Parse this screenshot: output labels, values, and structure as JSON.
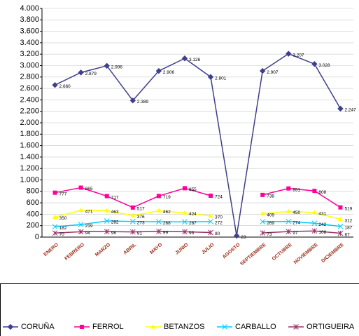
{
  "chart_data": {
    "type": "line",
    "categories": [
      "ENERO",
      "FEBRERO",
      "MARZO",
      "ABRIL",
      "MAYO",
      "JUNIO",
      "JULIO",
      "AGOSTO",
      "SEPTIEMBRE",
      "OCTUBRE",
      "NOVIEMBRE",
      "DICIEMBRE"
    ],
    "series": [
      {
        "name": "CORUÑA",
        "color": "#3f3f8f",
        "marker": "diamond",
        "values": [
          2660,
          2879,
          2996,
          2389,
          2906,
          3126,
          2801,
          23,
          2907,
          3207,
          3028,
          2247
        ],
        "value_labels": [
          "2.660",
          "2.879",
          "2.996",
          "2.389",
          "2.906",
          "3.126",
          "2.801",
          "23",
          "2.907",
          "3.207",
          "3.028",
          "2.247"
        ]
      },
      {
        "name": "FERROL",
        "color": "#ff0099",
        "marker": "square",
        "values": [
          777,
          865,
          717,
          517,
          719,
          855,
          724,
          null,
          738,
          851,
          808,
          519
        ]
      },
      {
        "name": "BETANZOS",
        "color": "#ffff00",
        "marker": "triangle",
        "values": [
          350,
          471,
          463,
          376,
          462,
          424,
          370,
          null,
          409,
          450,
          431,
          312
        ]
      },
      {
        "name": "CARBALLO",
        "color": "#00ccff",
        "marker": "x",
        "values": [
          182,
          219,
          282,
          273,
          268,
          267,
          272,
          null,
          269,
          274,
          242,
          187
        ]
      },
      {
        "name": "ORTIGUEIRA",
        "color": "#993366",
        "marker": "star",
        "values": [
          70,
          94,
          96,
          91,
          99,
          93,
          80,
          null,
          73,
          97,
          108,
          67
        ]
      }
    ],
    "ylim": [
      0,
      4000
    ],
    "yticks": [
      0,
      200,
      400,
      600,
      800,
      {
        "value": 1000,
        "label": "1.000"
      },
      {
        "value": 1200,
        "label": "1.200"
      },
      {
        "value": 1400,
        "label": "1.400"
      },
      {
        "value": 1600,
        "label": "1.600"
      },
      {
        "value": 1800,
        "label": "1.800"
      },
      {
        "value": 2000,
        "label": "2.000"
      },
      {
        "value": 2200,
        "label": "2.200"
      },
      {
        "value": 2400,
        "label": "2.400"
      },
      {
        "value": 2600,
        "label": "2.600"
      },
      {
        "value": 2800,
        "label": "2.800"
      },
      {
        "value": 3000,
        "label": "3.000"
      },
      {
        "value": 3200,
        "label": "3.200"
      },
      {
        "value": 3400,
        "label": "3.400"
      },
      {
        "value": 3600,
        "label": "3.600"
      },
      {
        "value": 3800,
        "label": "3.800"
      },
      {
        "value": 4000,
        "label": "4.000"
      }
    ],
    "grid": true,
    "legend": "bottom"
  }
}
